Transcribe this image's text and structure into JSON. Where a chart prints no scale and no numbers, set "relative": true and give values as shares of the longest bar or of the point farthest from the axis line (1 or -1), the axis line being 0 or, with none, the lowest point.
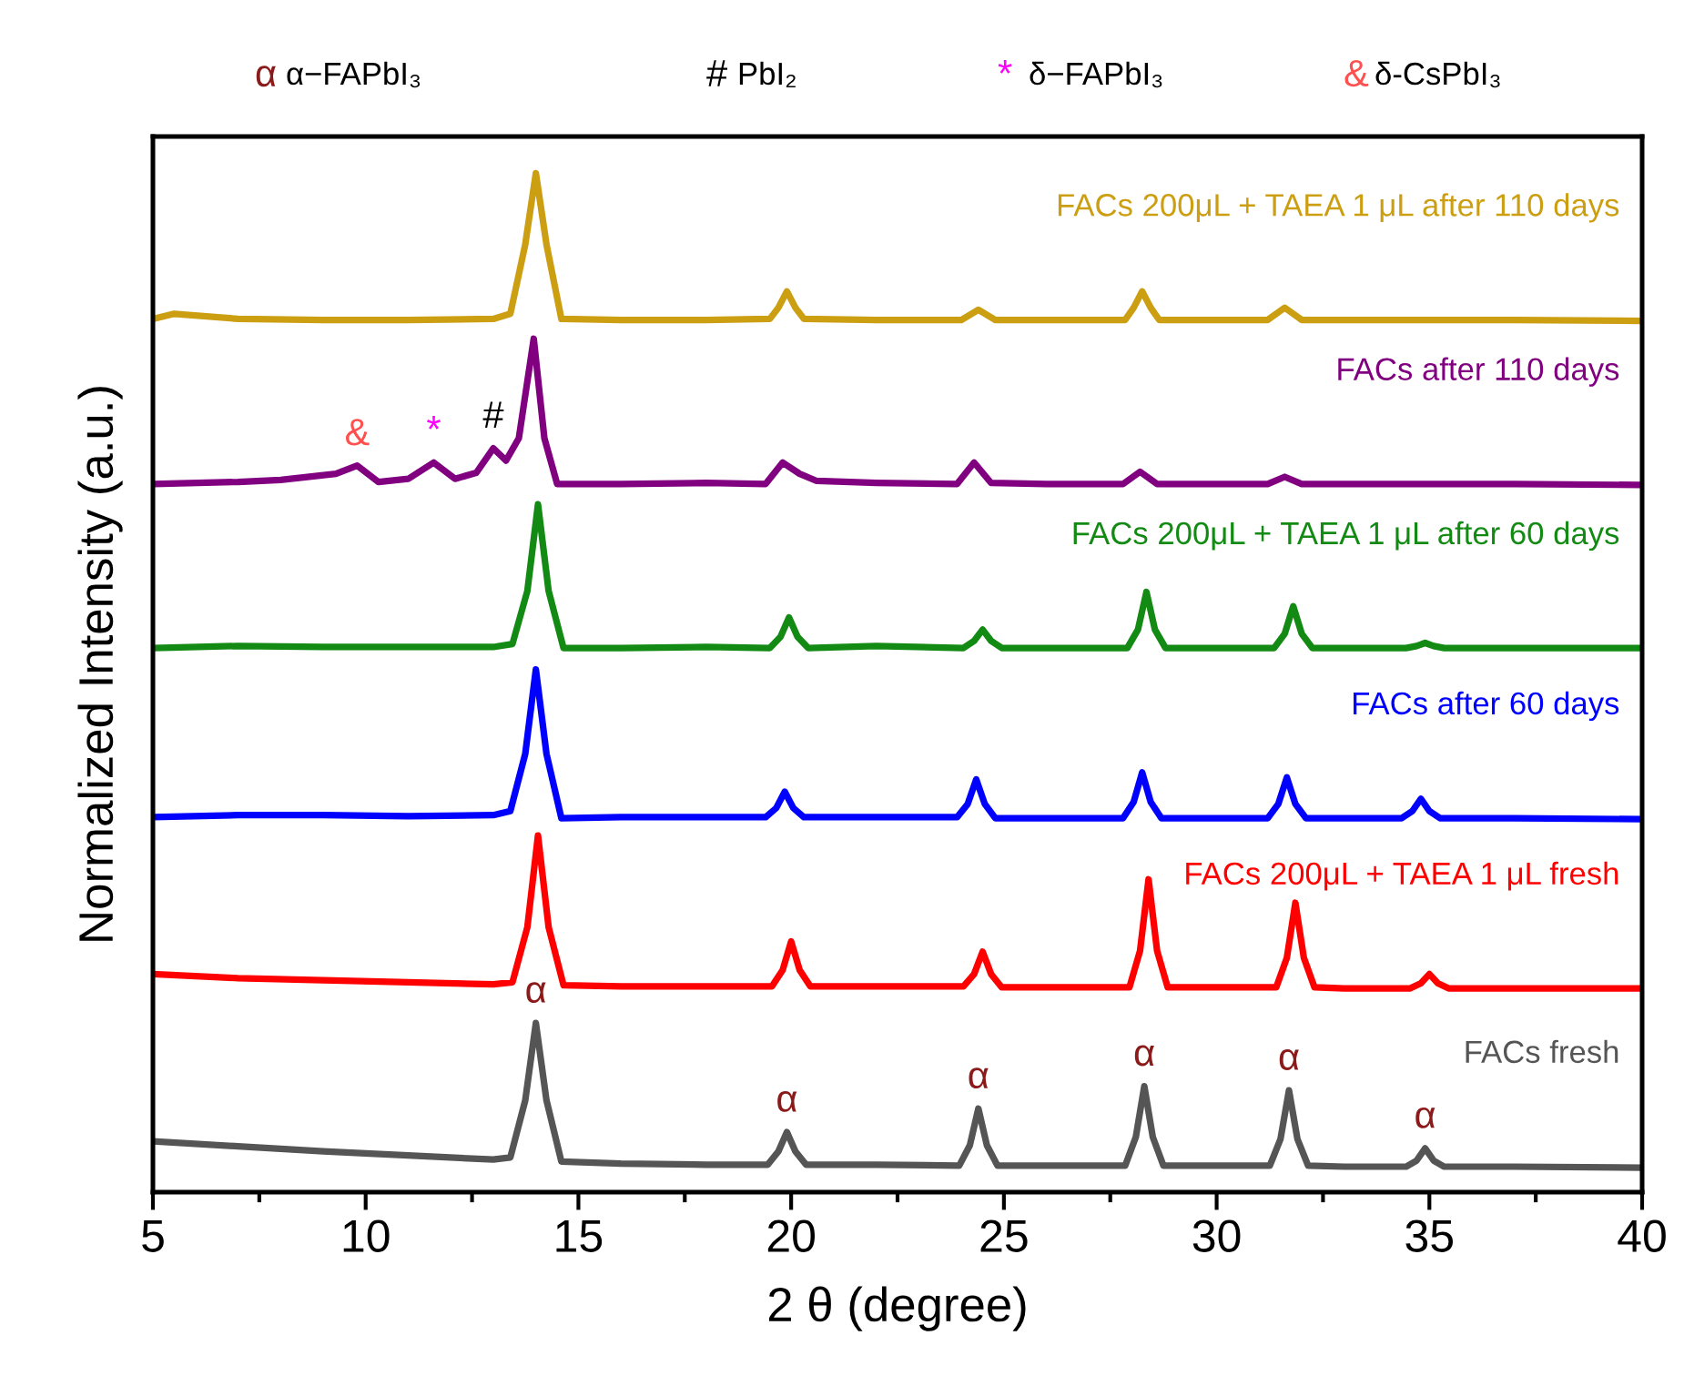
{
  "chart_data": {
    "type": "line",
    "relative": true,
    "xlabel": "2 θ (degree)",
    "ylabel": "Normalized Intensity (a.u.)",
    "xlim": [
      5,
      40
    ],
    "xticks": [
      5,
      10,
      15,
      20,
      25,
      30,
      35,
      40
    ],
    "grid": false,
    "legend": false,
    "marker": "none",
    "line_style": "solid",
    "series": [
      {
        "name": "FACs fresh",
        "color": "#555555",
        "x": [
          5,
          7,
          9,
          11,
          13,
          13.4,
          13.75,
          14.0,
          14.25,
          14.6,
          16,
          18,
          19.45,
          19.7,
          19.9,
          20.1,
          20.35,
          22,
          23.95,
          24.2,
          24.4,
          24.6,
          24.85,
          26,
          27.85,
          28.1,
          28.3,
          28.5,
          28.75,
          30,
          31.25,
          31.5,
          31.7,
          31.9,
          32.15,
          33,
          34.45,
          34.7,
          34.9,
          35.1,
          35.35,
          37,
          40
        ],
        "values": [
          0.05,
          0.045,
          0.04,
          0.036,
          0.032,
          0.034,
          0.09,
          0.166,
          0.09,
          0.03,
          0.028,
          0.027,
          0.027,
          0.04,
          0.059,
          0.04,
          0.027,
          0.027,
          0.026,
          0.046,
          0.082,
          0.046,
          0.026,
          0.026,
          0.026,
          0.054,
          0.104,
          0.054,
          0.026,
          0.026,
          0.026,
          0.052,
          0.1,
          0.052,
          0.026,
          0.025,
          0.025,
          0.031,
          0.043,
          0.031,
          0.025,
          0.025,
          0.024
        ]
      },
      {
        "name": "FACs 200μL + TAEA 1 μL fresh",
        "color": "#ff0000",
        "x": [
          5,
          7,
          9,
          11,
          13,
          13.45,
          13.8,
          14.05,
          14.3,
          14.65,
          16,
          18,
          19.55,
          19.8,
          20.0,
          20.2,
          20.45,
          22,
          24.05,
          24.3,
          24.5,
          24.7,
          24.95,
          26,
          27.95,
          28.2,
          28.4,
          28.6,
          28.85,
          30,
          31.4,
          31.65,
          31.85,
          32.05,
          32.3,
          33,
          34.55,
          34.8,
          35.0,
          35.2,
          35.45,
          37,
          40
        ],
        "values": [
          0.214,
          0.21,
          0.208,
          0.206,
          0.204,
          0.206,
          0.26,
          0.35,
          0.26,
          0.203,
          0.202,
          0.202,
          0.202,
          0.218,
          0.246,
          0.218,
          0.202,
          0.202,
          0.202,
          0.214,
          0.236,
          0.214,
          0.201,
          0.201,
          0.201,
          0.237,
          0.307,
          0.237,
          0.201,
          0.201,
          0.201,
          0.23,
          0.284,
          0.23,
          0.201,
          0.2,
          0.2,
          0.205,
          0.214,
          0.205,
          0.2,
          0.2,
          0.2
        ]
      },
      {
        "name": "FACs after 60 days",
        "color": "#0000ff",
        "x": [
          5,
          7,
          9,
          11,
          13,
          13.4,
          13.75,
          14.0,
          14.25,
          14.6,
          16,
          18,
          19.4,
          19.65,
          19.85,
          20.05,
          20.3,
          22,
          23.9,
          24.15,
          24.35,
          24.55,
          24.8,
          26,
          27.8,
          28.05,
          28.25,
          28.45,
          28.7,
          30,
          31.2,
          31.45,
          31.65,
          31.85,
          32.1,
          33,
          34.35,
          34.6,
          34.8,
          35.0,
          35.25,
          37,
          40
        ],
        "values": [
          0.368,
          0.37,
          0.37,
          0.369,
          0.37,
          0.374,
          0.43,
          0.513,
          0.43,
          0.367,
          0.368,
          0.368,
          0.368,
          0.377,
          0.393,
          0.377,
          0.368,
          0.368,
          0.368,
          0.381,
          0.405,
          0.381,
          0.367,
          0.367,
          0.367,
          0.383,
          0.412,
          0.383,
          0.367,
          0.367,
          0.367,
          0.381,
          0.407,
          0.381,
          0.367,
          0.367,
          0.367,
          0.374,
          0.386,
          0.374,
          0.367,
          0.367,
          0.366
        ]
      },
      {
        "name": "FACs 200μL + TAEA 1 μL after 60 days",
        "color": "#138a13",
        "x": [
          5,
          7,
          9,
          11,
          13,
          13.45,
          13.8,
          14.05,
          14.3,
          14.65,
          16,
          18,
          19.5,
          19.75,
          19.95,
          20.15,
          20.4,
          22,
          24.05,
          24.3,
          24.5,
          24.7,
          24.95,
          26,
          27.9,
          28.15,
          28.35,
          28.55,
          28.8,
          30,
          31.35,
          31.6,
          31.8,
          32.0,
          32.25,
          33,
          34.45,
          34.7,
          34.9,
          35.1,
          35.35,
          37,
          40
        ],
        "values": [
          0.534,
          0.536,
          0.535,
          0.535,
          0.535,
          0.538,
          0.59,
          0.675,
          0.59,
          0.534,
          0.534,
          0.535,
          0.534,
          0.545,
          0.564,
          0.545,
          0.534,
          0.536,
          0.534,
          0.541,
          0.552,
          0.541,
          0.534,
          0.534,
          0.534,
          0.552,
          0.589,
          0.552,
          0.534,
          0.534,
          0.534,
          0.548,
          0.575,
          0.548,
          0.534,
          0.534,
          0.534,
          0.536,
          0.539,
          0.536,
          0.534,
          0.534,
          0.534
        ]
      },
      {
        "name": "FACs after 110 days",
        "color": "#800080",
        "x": [
          5,
          7,
          8,
          9.3,
          9.8,
          10.3,
          11,
          11.6,
          12.1,
          12.6,
          13.0,
          13.3,
          13.6,
          13.95,
          14.2,
          14.5,
          16,
          18,
          19.4,
          19.8,
          20.2,
          20.6,
          22,
          23.9,
          24.3,
          24.7,
          26,
          27.8,
          28.2,
          28.6,
          30,
          31.2,
          31.6,
          32.0,
          35,
          37,
          40
        ],
        "values": [
          0.695,
          0.697,
          0.699,
          0.705,
          0.713,
          0.697,
          0.7,
          0.716,
          0.7,
          0.706,
          0.73,
          0.718,
          0.74,
          0.8375,
          0.74,
          0.695,
          0.695,
          0.696,
          0.695,
          0.716,
          0.705,
          0.698,
          0.696,
          0.695,
          0.716,
          0.696,
          0.695,
          0.695,
          0.707,
          0.695,
          0.695,
          0.695,
          0.702,
          0.695,
          0.695,
          0.695,
          0.694
        ]
      },
      {
        "name": "FACs 200μL + TAEA 1 μL after 110 days",
        "color": "#cc9e12",
        "x": [
          5,
          5.5,
          7,
          9,
          11,
          13,
          13.4,
          13.75,
          14.0,
          14.25,
          14.6,
          16,
          18,
          19.5,
          19.7,
          19.9,
          20.1,
          20.3,
          22,
          24.0,
          24.4,
          24.8,
          26,
          27.85,
          28.05,
          28.25,
          28.45,
          28.65,
          30,
          31.2,
          31.6,
          32.0,
          35,
          37,
          40
        ],
        "values": [
          0.857,
          0.862,
          0.857,
          0.856,
          0.856,
          0.857,
          0.862,
          0.93,
          1.0,
          0.93,
          0.857,
          0.856,
          0.856,
          0.857,
          0.868,
          0.884,
          0.868,
          0.857,
          0.856,
          0.856,
          0.866,
          0.856,
          0.856,
          0.856,
          0.868,
          0.884,
          0.868,
          0.856,
          0.856,
          0.856,
          0.868,
          0.856,
          0.856,
          0.856,
          0.855
        ]
      }
    ],
    "annotations": [
      {
        "text": "α",
        "x": 14.0,
        "y": 0.166
      },
      {
        "text": "α",
        "x": 19.9,
        "y": 0.059
      },
      {
        "text": "α",
        "x": 24.4,
        "y": 0.082
      },
      {
        "text": "α",
        "x": 28.3,
        "y": 0.104
      },
      {
        "text": "α",
        "x": 31.7,
        "y": 0.1
      },
      {
        "text": "α",
        "x": 34.9,
        "y": 0.043
      },
      {
        "text": "&",
        "x": 9.8,
        "y": 0.713
      },
      {
        "text": "*",
        "x": 11.6,
        "y": 0.716
      },
      {
        "text": "#",
        "x": 13.0,
        "y": 0.73
      },
      "α α−FAPbI₃",
      "# PbI₂",
      "* δ−FAPbI₃",
      "& δ-CsPbI₃"
    ]
  }
}
